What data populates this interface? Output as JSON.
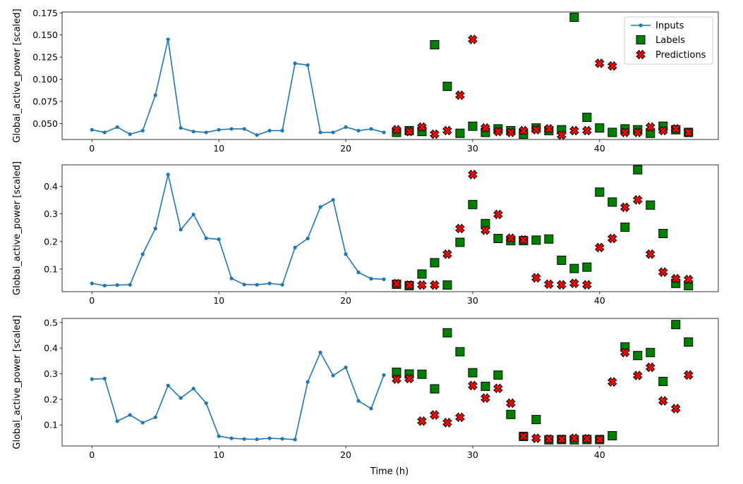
{
  "chart_data": {
    "type": "line+scatter",
    "xlabel": "Time (h)",
    "xlim": [
      -2.35,
      49.35
    ],
    "xticks": [
      0,
      10,
      20,
      30,
      40
    ],
    "legend": {
      "position": "top-right",
      "entries": [
        "Inputs",
        "Labels",
        "Predictions"
      ]
    },
    "colors": {
      "inputs": "#1f77b4",
      "labels": "#008000",
      "predictions": "#ff0000",
      "edge": "#000000"
    },
    "panels": [
      {
        "ylabel": "Global_active_power [scaled]",
        "ylim": [
          0.032,
          0.176
        ],
        "yticks": [
          0.05,
          0.075,
          0.1,
          0.125,
          0.15,
          0.175
        ],
        "ytick_labels": [
          "0.050",
          "0.075",
          "0.100",
          "0.125",
          "0.150",
          "0.175"
        ],
        "inputs_x": [
          0,
          1,
          2,
          3,
          4,
          5,
          6,
          7,
          8,
          9,
          10,
          11,
          12,
          13,
          14,
          15,
          16,
          17,
          18,
          19,
          20,
          21,
          22,
          23
        ],
        "inputs_y": [
          0.043,
          0.04,
          0.046,
          0.038,
          0.042,
          0.082,
          0.145,
          0.045,
          0.041,
          0.04,
          0.043,
          0.044,
          0.044,
          0.037,
          0.042,
          0.042,
          0.118,
          0.116,
          0.04,
          0.04,
          0.046,
          0.042,
          0.044,
          0.04
        ],
        "labels_x": [
          24,
          25,
          26,
          27,
          28,
          29,
          30,
          31,
          32,
          33,
          34,
          35,
          36,
          37,
          38,
          39,
          40,
          41,
          42,
          43,
          44,
          45,
          46,
          47
        ],
        "labels_y": [
          0.04,
          0.042,
          0.041,
          0.139,
          0.092,
          0.039,
          0.047,
          0.04,
          0.044,
          0.042,
          0.038,
          0.045,
          0.042,
          0.043,
          0.17,
          0.057,
          0.045,
          0.04,
          0.044,
          0.043,
          0.039,
          0.047,
          0.043,
          0.04
        ],
        "predictions_x": [
          24,
          25,
          26,
          27,
          28,
          29,
          30,
          31,
          32,
          33,
          34,
          35,
          36,
          37,
          38,
          39,
          40,
          41,
          42,
          43,
          44,
          45,
          46,
          47
        ],
        "predictions_y": [
          0.043,
          0.041,
          0.046,
          0.038,
          0.042,
          0.082,
          0.145,
          0.045,
          0.041,
          0.04,
          0.042,
          0.043,
          0.044,
          0.037,
          0.042,
          0.042,
          0.118,
          0.115,
          0.04,
          0.04,
          0.046,
          0.042,
          0.044,
          0.04
        ]
      },
      {
        "ylabel": "Global_active_power [scaled]",
        "ylim": [
          0.018,
          0.478
        ],
        "yticks": [
          0.1,
          0.2,
          0.3,
          0.4
        ],
        "ytick_labels": [
          "0.1",
          "0.2",
          "0.3",
          "0.4"
        ],
        "inputs_x": [
          0,
          1,
          2,
          3,
          4,
          5,
          6,
          7,
          8,
          9,
          10,
          11,
          12,
          13,
          14,
          15,
          16,
          17,
          18,
          19,
          20,
          21,
          22,
          23
        ],
        "inputs_y": [
          0.048,
          0.04,
          0.042,
          0.043,
          0.154,
          0.247,
          0.443,
          0.243,
          0.298,
          0.212,
          0.208,
          0.066,
          0.044,
          0.043,
          0.048,
          0.043,
          0.178,
          0.211,
          0.325,
          0.351,
          0.154,
          0.088,
          0.065,
          0.063
        ],
        "labels_x": [
          24,
          25,
          26,
          27,
          28,
          29,
          30,
          31,
          32,
          33,
          34,
          35,
          36,
          37,
          38,
          39,
          40,
          41,
          42,
          43,
          44,
          45,
          46,
          47
        ],
        "labels_y": [
          0.045,
          0.04,
          0.082,
          0.123,
          0.042,
          0.197,
          0.334,
          0.265,
          0.211,
          0.203,
          0.203,
          0.205,
          0.209,
          0.132,
          0.102,
          0.107,
          0.379,
          0.343,
          0.252,
          0.46,
          0.332,
          0.229,
          0.048,
          0.04
        ],
        "predictions_x": [
          24,
          25,
          26,
          27,
          28,
          29,
          30,
          31,
          32,
          33,
          34,
          35,
          36,
          37,
          38,
          39,
          40,
          41,
          42,
          43,
          44,
          45,
          46,
          47
        ],
        "predictions_y": [
          0.047,
          0.042,
          0.042,
          0.042,
          0.154,
          0.247,
          0.443,
          0.241,
          0.298,
          0.212,
          0.206,
          0.068,
          0.045,
          0.043,
          0.048,
          0.043,
          0.178,
          0.211,
          0.324,
          0.351,
          0.154,
          0.089,
          0.065,
          0.062
        ]
      },
      {
        "ylabel": "Global_active_power [scaled]",
        "ylim": [
          0.018,
          0.516
        ],
        "yticks": [
          0.1,
          0.2,
          0.3,
          0.4,
          0.5
        ],
        "ytick_labels": [
          "0.1",
          "0.2",
          "0.3",
          "0.4",
          "0.5"
        ],
        "inputs_x": [
          0,
          1,
          2,
          3,
          4,
          5,
          6,
          7,
          8,
          9,
          10,
          11,
          12,
          13,
          14,
          15,
          16,
          17,
          18,
          19,
          20,
          21,
          22,
          23
        ],
        "inputs_y": [
          0.279,
          0.281,
          0.115,
          0.139,
          0.109,
          0.13,
          0.254,
          0.205,
          0.242,
          0.185,
          0.056,
          0.048,
          0.045,
          0.044,
          0.048,
          0.046,
          0.043,
          0.268,
          0.383,
          0.293,
          0.325,
          0.194,
          0.164,
          0.295
        ],
        "labels_x": [
          24,
          25,
          26,
          27,
          28,
          29,
          30,
          31,
          32,
          33,
          34,
          35,
          36,
          37,
          38,
          39,
          40,
          41,
          42,
          43,
          44,
          45,
          46,
          47
        ],
        "labels_y": [
          0.306,
          0.299,
          0.298,
          0.241,
          0.46,
          0.386,
          0.304,
          0.251,
          0.295,
          0.141,
          0.055,
          0.121,
          0.042,
          0.043,
          0.042,
          0.043,
          0.043,
          0.058,
          0.405,
          0.371,
          0.383,
          0.27,
          0.492,
          0.424
        ],
        "predictions_x": [
          24,
          25,
          26,
          27,
          28,
          29,
          30,
          31,
          32,
          33,
          34,
          35,
          36,
          37,
          38,
          39,
          40,
          41,
          42,
          43,
          44,
          45,
          46,
          47
        ],
        "predictions_y": [
          0.279,
          0.281,
          0.115,
          0.139,
          0.109,
          0.13,
          0.254,
          0.205,
          0.243,
          0.185,
          0.056,
          0.048,
          0.045,
          0.044,
          0.048,
          0.046,
          0.043,
          0.268,
          0.383,
          0.293,
          0.325,
          0.194,
          0.164,
          0.295
        ]
      }
    ]
  }
}
